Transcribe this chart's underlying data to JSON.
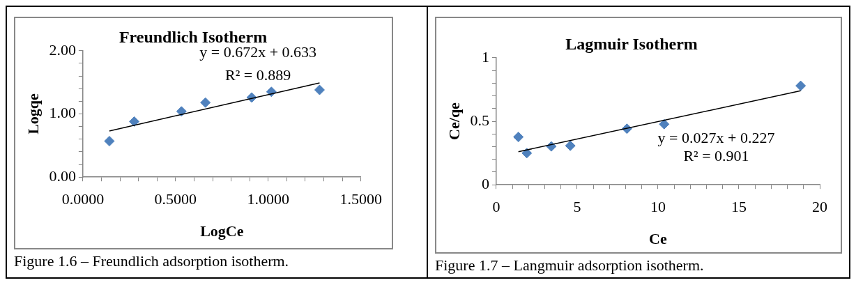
{
  "chart_data": [
    {
      "type": "scatter",
      "title": "Freundlich Isotherm",
      "xlabel": "LogCe",
      "ylabel": "Logqe",
      "marker": "diamond",
      "grid": false,
      "legend": false,
      "xlim": [
        0,
        1.5
      ],
      "xticks": [
        {
          "value": 0,
          "label": "0.0000"
        },
        {
          "value": 0.1,
          "label": null
        },
        {
          "value": 0.2,
          "label": null
        },
        {
          "value": 0.3,
          "label": null
        },
        {
          "value": 0.4,
          "label": null
        },
        {
          "value": 0.5,
          "label": "0.5000"
        },
        {
          "value": 0.6,
          "label": null
        },
        {
          "value": 0.7,
          "label": null
        },
        {
          "value": 0.8,
          "label": null
        },
        {
          "value": 0.9,
          "label": null
        },
        {
          "value": 1,
          "label": "1.0000"
        },
        {
          "value": 1.1,
          "label": null
        },
        {
          "value": 1.2,
          "label": null
        },
        {
          "value": 1.3,
          "label": null
        },
        {
          "value": 1.4,
          "label": null
        },
        {
          "value": 1.5,
          "label": "1.5000"
        }
      ],
      "ylim": [
        0,
        2
      ],
      "yticks": [
        {
          "value": 0,
          "label": "0.00"
        },
        {
          "value": 0.2,
          "label": null
        },
        {
          "value": 0.4,
          "label": null
        },
        {
          "value": 0.6,
          "label": null
        },
        {
          "value": 0.8,
          "label": null
        },
        {
          "value": 1,
          "label": "1.00"
        },
        {
          "value": 1.2,
          "label": null
        },
        {
          "value": 1.4,
          "label": null
        },
        {
          "value": 1.6,
          "label": null
        },
        {
          "value": 1.8,
          "label": null
        },
        {
          "value": 2,
          "label": "2.00"
        }
      ],
      "series": [
        {
          "type": "scatter",
          "color": "#4f81bd",
          "x": [
            0.143,
            0.277,
            0.532,
            0.661,
            0.911,
            1.017,
            1.277
          ],
          "values": [
            0.57,
            0.88,
            1.04,
            1.18,
            1.26,
            1.35,
            1.38
          ]
        },
        {
          "type": "line",
          "color": "#000000",
          "marker": "none",
          "x": [
            0.143,
            1.277
          ],
          "values": [
            0.73,
            1.49
          ]
        }
      ],
      "annotations": [
        "y = 0.672x + 0.633",
        "R² = 0.889",
        "Figure 1.6 –  Freundlich adsorption isotherm."
      ]
    },
    {
      "type": "scatter",
      "title": "Lagmuir Isotherm",
      "xlabel": "Ce",
      "ylabel": "Ce/qe",
      "marker": "diamond",
      "grid": false,
      "legend": false,
      "xlim": [
        0,
        20
      ],
      "xticks": [
        0,
        {
          "value": 1,
          "label": null
        },
        {
          "value": 2,
          "label": null
        },
        {
          "value": 3,
          "label": null
        },
        {
          "value": 4,
          "label": null
        },
        5,
        {
          "value": 6,
          "label": null
        },
        {
          "value": 7,
          "label": null
        },
        {
          "value": 8,
          "label": null
        },
        {
          "value": 9,
          "label": null
        },
        10,
        {
          "value": 11,
          "label": null
        },
        {
          "value": 12,
          "label": null
        },
        {
          "value": 13,
          "label": null
        },
        {
          "value": 14,
          "label": null
        },
        15,
        {
          "value": 16,
          "label": null
        },
        {
          "value": 17,
          "label": null
        },
        {
          "value": 18,
          "label": null
        },
        {
          "value": 19,
          "label": null
        },
        20
      ],
      "ylim": [
        0,
        1
      ],
      "yticks": [
        0,
        {
          "value": 0.1,
          "label": null
        },
        {
          "value": 0.2,
          "label": null
        },
        {
          "value": 0.3,
          "label": null
        },
        {
          "value": 0.4,
          "label": null
        },
        0.5,
        {
          "value": 0.6,
          "label": null
        },
        {
          "value": 0.7,
          "label": null
        },
        {
          "value": 0.8,
          "label": null
        },
        {
          "value": 0.9,
          "label": null
        },
        1
      ],
      "series": [
        {
          "type": "scatter",
          "color": "#4f81bd",
          "x": [
            1.37,
            1.89,
            3.4,
            4.58,
            8.08,
            10.38,
            18.82
          ],
          "values": [
            0.376,
            0.249,
            0.302,
            0.307,
            0.441,
            0.477,
            0.779
          ]
        },
        {
          "type": "line",
          "color": "#000000",
          "marker": "none",
          "x": [
            1.37,
            18.82
          ],
          "values": [
            0.26,
            0.74
          ]
        }
      ],
      "annotations": [
        "y = 0.027x + 0.227",
        "R² = 0.901",
        "Figure 1.7 – Langmuir adsorption isotherm."
      ]
    }
  ]
}
